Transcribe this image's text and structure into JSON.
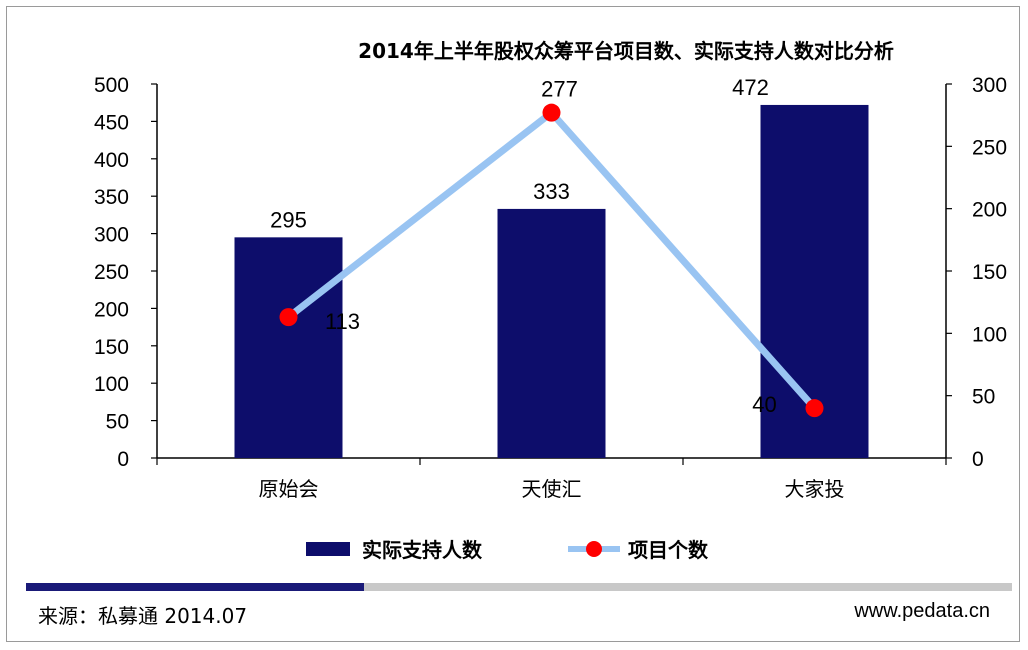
{
  "chart_data": {
    "type": "bar",
    "title": "2014年上半年股权众筹平台项目数、实际支持人数对比分析",
    "categories": [
      "原始会",
      "天使汇",
      "大家投"
    ],
    "series": [
      {
        "name": "实际支持人数",
        "type": "bar",
        "axis": "left",
        "values": [
          295,
          333,
          472
        ],
        "color": "#0d0d6b"
      },
      {
        "name": "项目个数",
        "type": "line",
        "axis": "right",
        "values": [
          113,
          277,
          40
        ],
        "color": "#99c4f2",
        "marker_color": "#ff0000"
      }
    ],
    "ylim_left": [
      0,
      500
    ],
    "yticks_left": [
      "0",
      "50",
      "100",
      "150",
      "200",
      "250",
      "300",
      "350",
      "400",
      "450",
      "500"
    ],
    "ylim_right": [
      0,
      300
    ],
    "yticks_right": [
      "0",
      "50",
      "100",
      "150",
      "200",
      "250",
      "300"
    ],
    "data_labels_bar": [
      "295",
      "333",
      "472"
    ],
    "data_labels_line": [
      "113",
      "277",
      "40"
    ],
    "grid": false,
    "legend_position": "bottom"
  },
  "footer": {
    "source": "来源：私募通 2014.07",
    "site": "www.pedata.cn"
  }
}
